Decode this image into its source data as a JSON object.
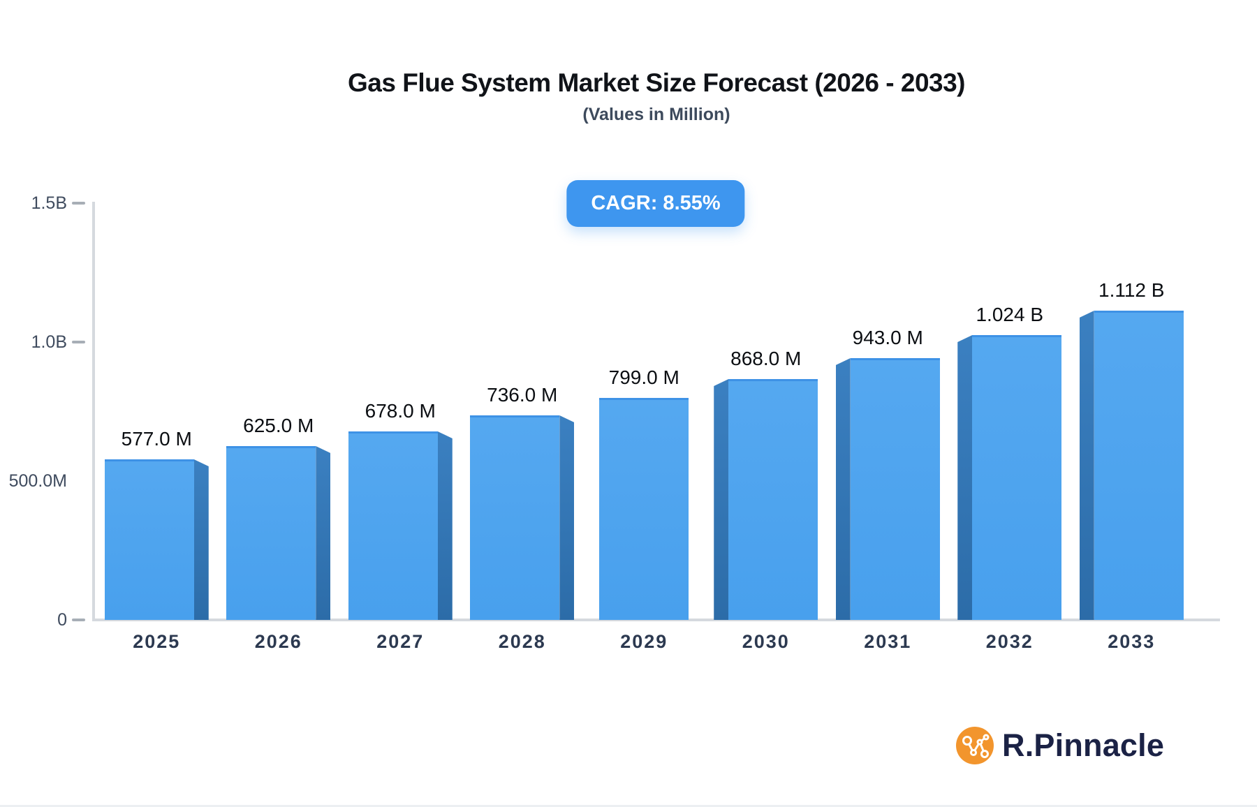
{
  "header": {
    "title": "Gas Flue System Market Size Forecast (2026 - 2033)",
    "subtitle": "(Values in Million)",
    "cagr_badge": "CAGR: 8.55%"
  },
  "footer": {
    "brand": "R.Pinnacle",
    "logo_icon": "network-nodes-icon"
  },
  "colors": {
    "title_c": "#101318",
    "subtitle_c": "#3d4a5c",
    "badge_bg": "#3e96ef",
    "bar_face_top": "#55a8f0",
    "bar_face": "#48a0ed",
    "bar_top_border": "#3e92e6",
    "bar_side1": "#3b80c1",
    "bar_side2": "#2c6ca8",
    "axis": "#d5d9de",
    "dash": "#a7aeb6",
    "ylabel_c": "#3f4b5e",
    "xlabel_c": "#2c3950",
    "value_c": "#0b0e12",
    "logo_orange": "#f2952d",
    "logo_navy": "#1b2245"
  },
  "chart_data": {
    "type": "bar",
    "title": "Gas Flue System Market Size Forecast (2026 - 2033)",
    "subtitle": "(Values in Million)",
    "annotation": "CAGR: 8.55%",
    "categories": [
      "2025",
      "2026",
      "2027",
      "2028",
      "2029",
      "2030",
      "2031",
      "2032",
      "2033"
    ],
    "series": [
      {
        "name": "Market Size",
        "values_millions": [
          577,
          625,
          678,
          736,
          799,
          868,
          943,
          1024,
          1112
        ],
        "labels": [
          "577.0 M",
          "625.0 M",
          "678.0 M",
          "736.0 M",
          "799.0 M",
          "868.0 M",
          "943.0 M",
          "1.024 B",
          "1.112 B"
        ]
      }
    ],
    "yaxis": {
      "lim_millions": [
        0,
        1500
      ],
      "ticks": [
        {
          "label": "1.5B",
          "value_millions": 1500,
          "dash": true
        },
        {
          "label": "1.0B",
          "value_millions": 1000,
          "dash": true
        },
        {
          "label": "500.0M",
          "value_millions": 500,
          "dash": false
        },
        {
          "label": "0",
          "value_millions": 0,
          "dash": true
        }
      ]
    },
    "grid": false,
    "legend": null,
    "bar_style": "3d-beveled, side face toward chart center"
  }
}
